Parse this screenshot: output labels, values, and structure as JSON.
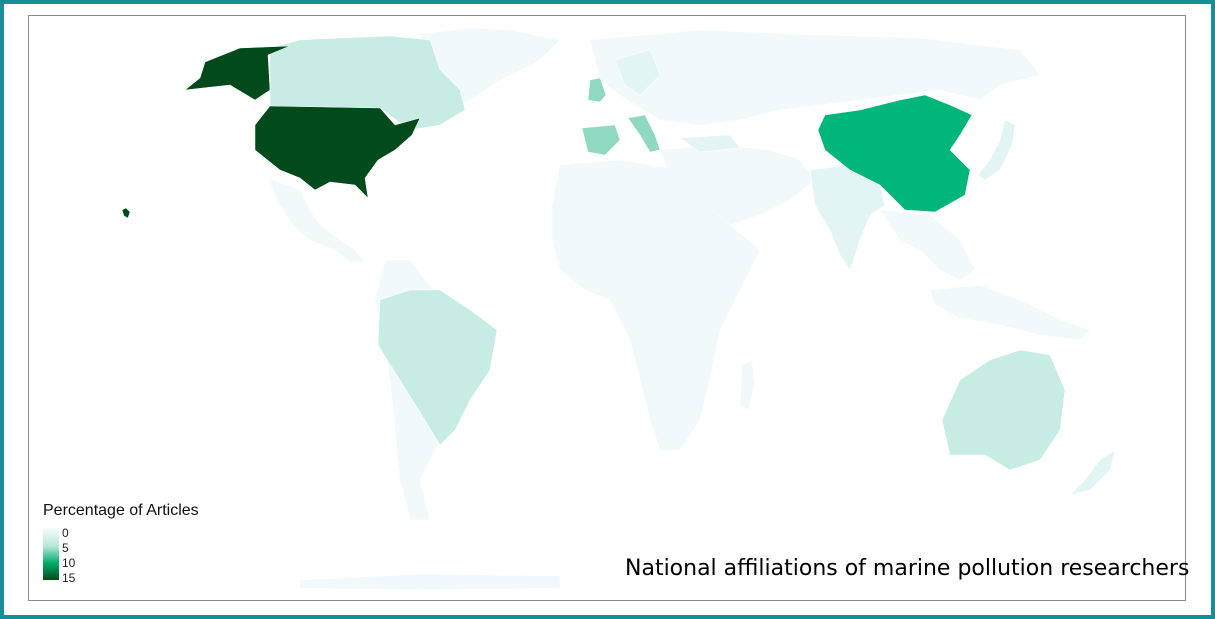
{
  "legend": {
    "title": "Percentage of Articles",
    "ticks": [
      "0",
      "5",
      "10",
      "15"
    ],
    "scale_min_color": "#f4fbfc",
    "scale_max_color": "#004d1a"
  },
  "caption": "National affiliations of marine pollution researchers",
  "colors": {
    "frame": "#15909a",
    "land_zero": "#f2f9fb",
    "usa": "#004a1b",
    "china": "#00b57a",
    "canada_brazil_australia": "#c6ece3",
    "europe_high": "#8fd8c2",
    "low": "#e3f4f5"
  }
}
